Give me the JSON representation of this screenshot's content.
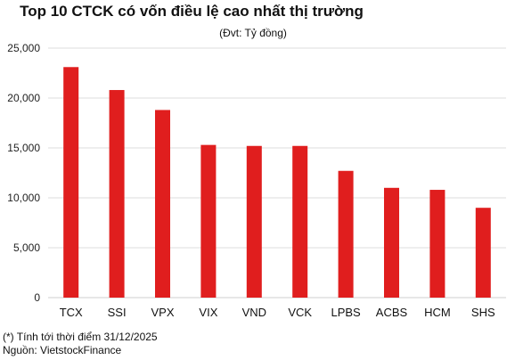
{
  "chart_data": {
    "type": "bar",
    "title": "Top 10 CTCK có vốn điều lệ cao nhất thị trường",
    "subtitle": "(Đvt: Tỷ đồng)",
    "categories": [
      "TCX",
      "SSI",
      "VPX",
      "VIX",
      "VND",
      "VCK",
      "LPBS",
      "ACBS",
      "HCM",
      "SHS"
    ],
    "values": [
      23100,
      20800,
      18800,
      15300,
      15200,
      15200,
      12700,
      11000,
      10800,
      9000
    ],
    "ylim": [
      0,
      25000
    ],
    "yticks": [
      0,
      5000,
      10000,
      15000,
      20000,
      25000
    ],
    "ytick_labels": [
      "0",
      "5,000",
      "10,000",
      "15,000",
      "20,000",
      "25,000"
    ],
    "bar_color": "#e01e1e",
    "grid": "horizontal",
    "legend": "none"
  },
  "notes": {
    "footnote": "(*) Tính tới thời điểm 31/12/2025",
    "source": "Nguồn: VietstockFinance"
  }
}
